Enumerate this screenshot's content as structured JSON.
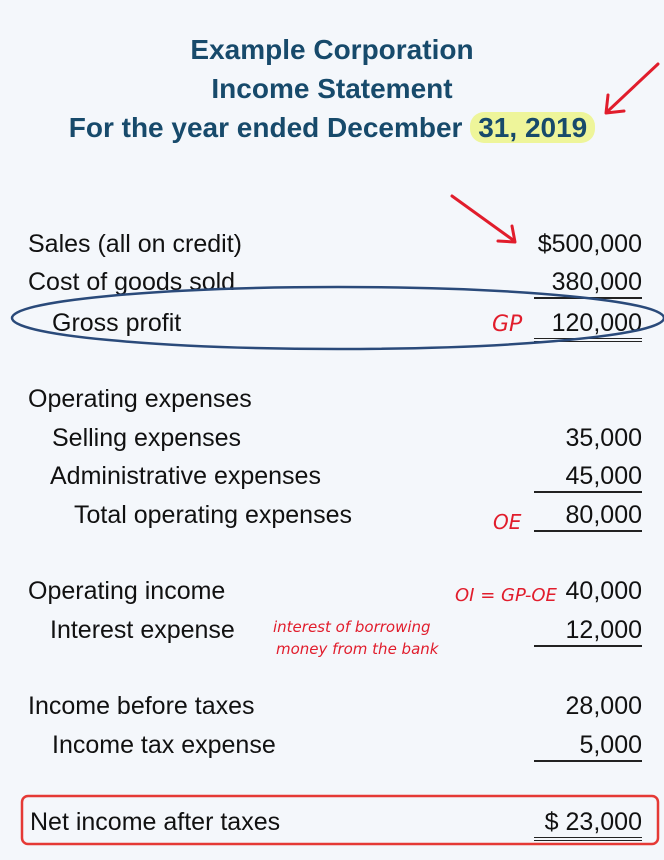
{
  "header": {
    "company": "Example Corporation",
    "statement": "Income Statement",
    "period_prefix": "For the year ended December",
    "period_date": "31, 2019"
  },
  "rows": {
    "sales": {
      "label": "Sales (all on credit)",
      "value": "$500,000"
    },
    "cogs": {
      "label": "Cost of goods sold",
      "value": "380,000"
    },
    "gross_profit": {
      "label": "Gross profit",
      "value": "120,000"
    },
    "opex_heading": {
      "label": "Operating expenses"
    },
    "selling": {
      "label": "Selling expenses",
      "value": "35,000"
    },
    "admin": {
      "label": "Administrative expenses",
      "value": "45,000"
    },
    "total_opex": {
      "label": "Total operating expenses",
      "value": "80,000"
    },
    "operating_income": {
      "label": "Operating income",
      "value": "40,000"
    },
    "interest": {
      "label": "Interest expense",
      "value": "12,000"
    },
    "income_before_tax": {
      "label": "Income before taxes",
      "value": "28,000"
    },
    "tax": {
      "label": "Income tax expense",
      "value": "5,000"
    },
    "net_income": {
      "label": "Net income after taxes",
      "value": "$ 23,000"
    }
  },
  "annotations": {
    "gp": "GP",
    "oe": "OE",
    "oi_formula": "OI = GP-OE",
    "interest_note_line1": "interest of borrowing",
    "interest_note_line2": "money from the bank"
  },
  "colors": {
    "title": "#174a6b",
    "annotation_red": "#e11d2c",
    "ellipse_blue": "#2a4a7a",
    "highlight_yellow": "#eef59a",
    "box_red": "#e53935"
  }
}
